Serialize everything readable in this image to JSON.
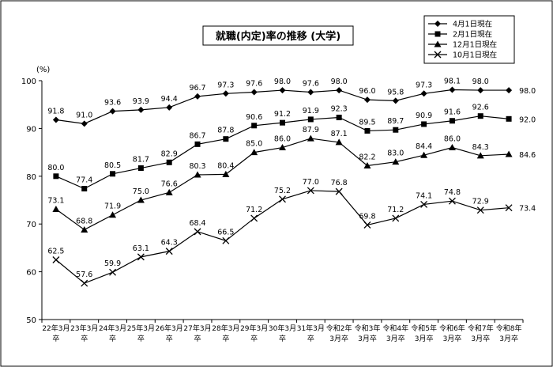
{
  "chart_data": {
    "type": "line",
    "title": "就職(内定)率の推移 (大学)",
    "ylabel": "(%)",
    "ylim": [
      50,
      100
    ],
    "yticks": [
      50,
      60,
      70,
      80,
      90,
      100
    ],
    "grid": false,
    "legend_position": "top-right",
    "categories": [
      [
        "22年3月",
        "卒"
      ],
      [
        "23年3月",
        "卒"
      ],
      [
        "24年3月",
        "卒"
      ],
      [
        "25年3月",
        "卒"
      ],
      [
        "26年3月",
        "卒"
      ],
      [
        "27年3月",
        "卒"
      ],
      [
        "28年3月",
        "卒"
      ],
      [
        "29年3月",
        "卒"
      ],
      [
        "30年3月",
        "卒"
      ],
      [
        "31年3月",
        "卒"
      ],
      [
        "令和2年",
        "3月卒"
      ],
      [
        "令和3年",
        "3月卒"
      ],
      [
        "令和4年",
        "3月卒"
      ],
      [
        "令和5年",
        "3月卒"
      ],
      [
        "令和6年",
        "3月卒"
      ],
      [
        "令和7年",
        "3月卒"
      ],
      [
        "令和8年",
        "3月卒"
      ]
    ],
    "series": [
      {
        "name": "4月1日現在",
        "marker": "diamond",
        "values": [
          91.8,
          91.0,
          93.6,
          93.9,
          94.4,
          96.7,
          97.3,
          97.6,
          98.0,
          97.6,
          98.0,
          96.0,
          95.8,
          97.3,
          98.1,
          98.0,
          98.0
        ]
      },
      {
        "name": "2月1日現在",
        "marker": "square",
        "values": [
          80.0,
          77.4,
          80.5,
          81.7,
          82.9,
          86.7,
          87.8,
          90.6,
          91.2,
          91.9,
          92.3,
          89.5,
          89.7,
          90.9,
          91.6,
          92.6,
          92.0
        ]
      },
      {
        "name": "12月1日現在",
        "marker": "triangle",
        "values": [
          73.1,
          68.8,
          71.9,
          75.0,
          76.6,
          80.3,
          80.4,
          85.0,
          86.0,
          87.9,
          87.1,
          82.2,
          83.0,
          84.4,
          86.0,
          84.3,
          84.6
        ]
      },
      {
        "name": "10月1日現在",
        "marker": "x",
        "values": [
          62.5,
          57.6,
          59.9,
          63.1,
          64.3,
          68.4,
          66.5,
          71.2,
          75.2,
          77.0,
          76.8,
          69.8,
          71.2,
          74.1,
          74.8,
          72.9,
          73.4
        ]
      }
    ]
  }
}
